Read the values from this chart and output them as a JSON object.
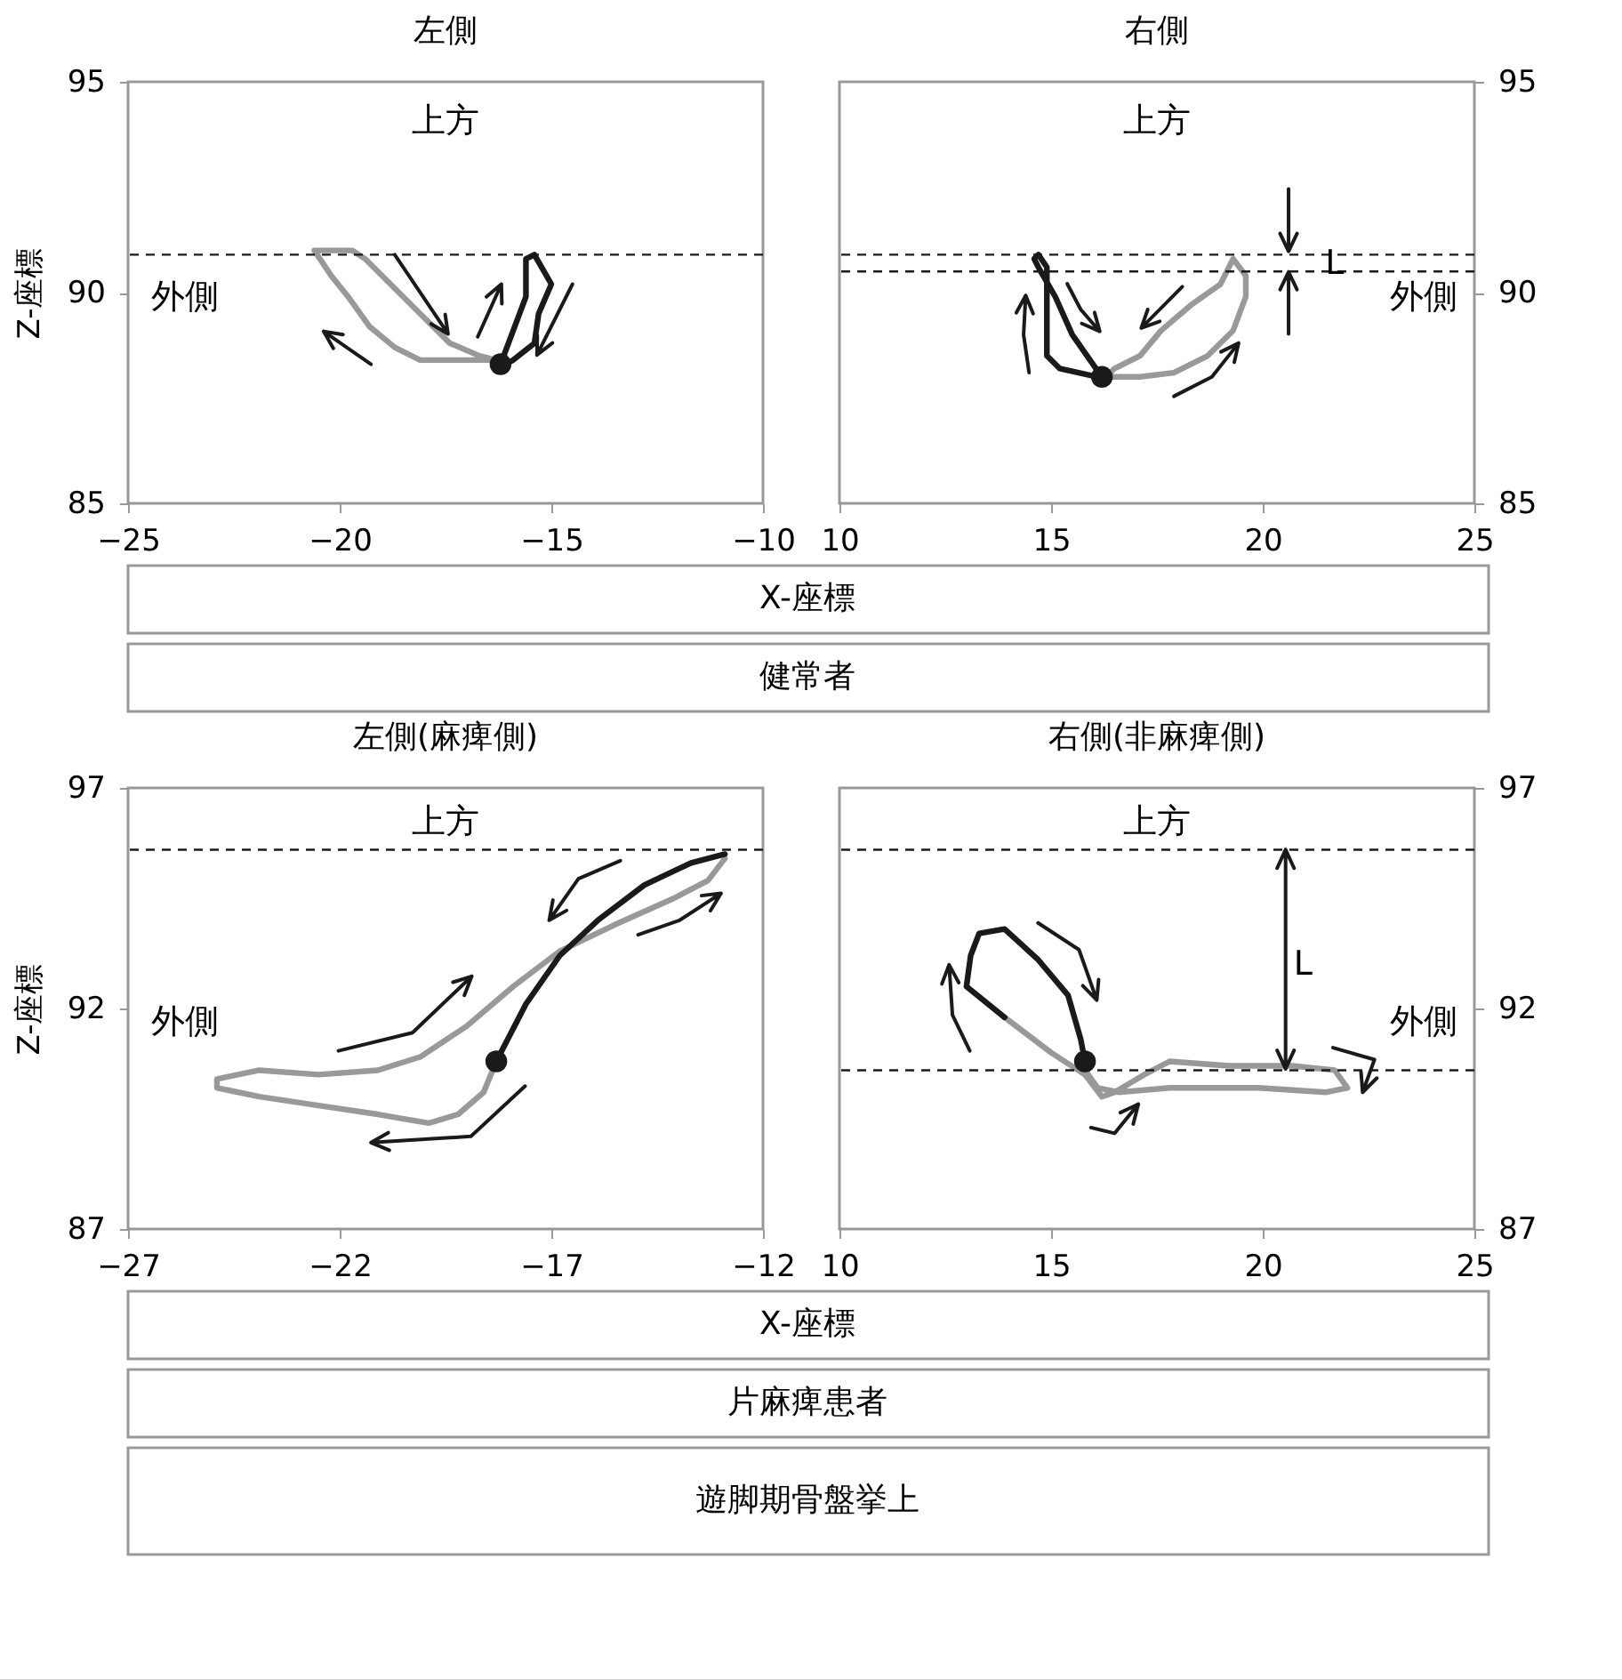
{
  "chart_data": [
    {
      "type": "line",
      "title": "左側",
      "xlabel": "X-座標",
      "ylabel": "Z-座標",
      "xlim": [
        -25,
        -10
      ],
      "xticks": [
        -25,
        -20,
        -15,
        -10
      ],
      "ylim": [
        85,
        95
      ],
      "yticks": [
        85,
        90,
        95
      ],
      "series": [
        {
          "type": "line",
          "color": "#999999",
          "x": [
            -16.3,
            -16.7,
            -17.4,
            -18.1,
            -18.8,
            -19.4,
            -19.7,
            -20.6,
            -20.2,
            -19.8,
            -19.3,
            -18.7,
            -18.1,
            -16.7,
            -16.4
          ],
          "values": [
            88.4,
            88.5,
            88.8,
            89.5,
            90.2,
            90.8,
            91.0,
            91.0,
            90.4,
            89.9,
            89.2,
            88.7,
            88.4,
            88.4,
            88.4
          ]
        },
        {
          "type": "line",
          "color": "#1a1a1a",
          "x": [
            -16.2,
            -15.9,
            -15.6,
            -15.6,
            -15.4,
            -15.0,
            -15.3,
            -15.4,
            -15.9,
            -16.1
          ],
          "values": [
            88.3,
            89.1,
            89.9,
            90.8,
            90.9,
            90.2,
            89.5,
            88.8,
            88.4,
            88.3
          ]
        },
        {
          "type": "scatter",
          "color": "#1a1a1a",
          "marker": "circle",
          "x": [
            -16.2
          ],
          "values": [
            88.3
          ]
        }
      ],
      "ref_lines": [
        {
          "axis": "y",
          "value": 90.9,
          "line_style": "dashed",
          "color": "#1a1a1a"
        }
      ],
      "annotations": [
        "上方",
        "外側",
        "健常者"
      ]
    },
    {
      "type": "line",
      "title": "右側",
      "xlim": [
        10,
        25
      ],
      "xticks": [
        10,
        15,
        20,
        25
      ],
      "ylim": [
        85,
        95
      ],
      "yticks": [
        85,
        90,
        95
      ],
      "series": [
        {
          "type": "line",
          "color": "#999999",
          "x": [
            16.2,
            17.1,
            17.9,
            18.7,
            19.3,
            19.6,
            19.6,
            19.3,
            19.0,
            18.3,
            17.6,
            17.1,
            16.5,
            16.3
          ],
          "values": [
            88.0,
            88.0,
            88.1,
            88.5,
            89.1,
            89.9,
            90.4,
            90.8,
            90.2,
            89.7,
            89.1,
            88.5,
            88.2,
            88.0
          ]
        },
        {
          "type": "line",
          "color": "#1a1a1a",
          "x": [
            16.2,
            15.5,
            15.1,
            14.7,
            14.6,
            14.7,
            14.9,
            14.9,
            14.9,
            15.2,
            16.1
          ],
          "values": [
            88.0,
            89.0,
            89.9,
            90.6,
            90.8,
            90.9,
            90.6,
            89.9,
            88.5,
            88.2,
            88.0
          ]
        },
        {
          "type": "scatter",
          "color": "#1a1a1a",
          "marker": "circle",
          "x": [
            16.2
          ],
          "values": [
            88.0
          ]
        }
      ],
      "ref_lines": [
        {
          "axis": "y",
          "value": 90.9,
          "line_style": "dashed",
          "color": "#1a1a1a"
        },
        {
          "axis": "y",
          "value": 90.5,
          "line_style": "dashed",
          "color": "#1a1a1a"
        }
      ],
      "annotations": [
        "上方",
        "外側",
        "L"
      ]
    },
    {
      "type": "line",
      "title": "左側(麻痺側)",
      "xlabel": "X-座標",
      "ylabel": "Z-座標",
      "xlim": [
        -27,
        -12
      ],
      "xticks": [
        -27,
        -22,
        -17,
        -12
      ],
      "ylim": [
        87,
        97
      ],
      "yticks": [
        87,
        92,
        97
      ],
      "series": [
        {
          "type": "line",
          "color": "#999999",
          "x": [
            -18.3,
            -18.6,
            -19.2,
            -19.9,
            -21.1,
            -22.5,
            -23.9,
            -24.9,
            -24.9,
            -23.9,
            -22.5,
            -21.1,
            -20.1,
            -19.0,
            -17.9,
            -16.8,
            -15.5,
            -14.1,
            -13.3,
            -12.9
          ],
          "values": [
            90.8,
            90.1,
            89.6,
            89.4,
            89.6,
            89.8,
            90.0,
            90.2,
            90.4,
            90.6,
            90.5,
            90.6,
            90.9,
            91.6,
            92.5,
            93.3,
            93.9,
            94.5,
            94.9,
            95.4
          ]
        },
        {
          "type": "line",
          "color": "#1a1a1a",
          "x": [
            -18.3,
            -17.6,
            -16.8,
            -15.9,
            -14.8,
            -13.7,
            -12.9
          ],
          "values": [
            90.8,
            92.1,
            93.2,
            94.0,
            94.8,
            95.3,
            95.5
          ]
        },
        {
          "type": "scatter",
          "color": "#1a1a1a",
          "marker": "circle",
          "x": [
            -18.3
          ],
          "values": [
            90.8
          ]
        }
      ],
      "ref_lines": [
        {
          "axis": "y",
          "value": 95.6,
          "line_style": "dashed",
          "color": "#1a1a1a"
        }
      ],
      "annotations": [
        "上方",
        "外側",
        "片麻痺患者"
      ]
    },
    {
      "type": "line",
      "title": "右側(非麻痺側)",
      "xlim": [
        10,
        25
      ],
      "xticks": [
        10,
        15,
        20,
        25
      ],
      "ylim": [
        87,
        97
      ],
      "yticks": [
        87,
        92,
        97
      ],
      "series": [
        {
          "type": "line",
          "color": "#999999",
          "x": [
            13.9,
            15.0,
            15.8,
            16.2,
            16.5,
            17.2,
            17.8,
            19.2,
            20.7,
            21.7,
            22.0,
            21.5,
            19.9,
            17.8,
            16.6,
            16.1,
            15.8,
            15.8
          ],
          "values": [
            91.8,
            91.0,
            90.5,
            90.0,
            90.1,
            90.5,
            90.8,
            90.7,
            90.7,
            90.6,
            90.2,
            90.1,
            90.2,
            90.2,
            90.1,
            90.2,
            90.6,
            90.8
          ]
        },
        {
          "type": "line",
          "color": "#1a1a1a",
          "x": [
            15.8,
            15.7,
            15.4,
            14.7,
            13.9,
            13.3,
            13.1,
            13.0,
            13.9
          ],
          "values": [
            90.8,
            91.3,
            92.3,
            93.1,
            93.8,
            93.7,
            93.2,
            92.5,
            91.8
          ]
        },
        {
          "type": "scatter",
          "color": "#1a1a1a",
          "marker": "circle",
          "x": [
            15.8
          ],
          "values": [
            90.8
          ]
        }
      ],
      "ref_lines": [
        {
          "axis": "y",
          "value": 95.6,
          "line_style": "dashed",
          "color": "#1a1a1a"
        },
        {
          "axis": "y",
          "value": 90.6,
          "line_style": "dashed",
          "color": "#1a1a1a"
        }
      ],
      "annotations": [
        "上方",
        "外側",
        "L",
        "遊脚期骨盤挙上"
      ]
    }
  ]
}
